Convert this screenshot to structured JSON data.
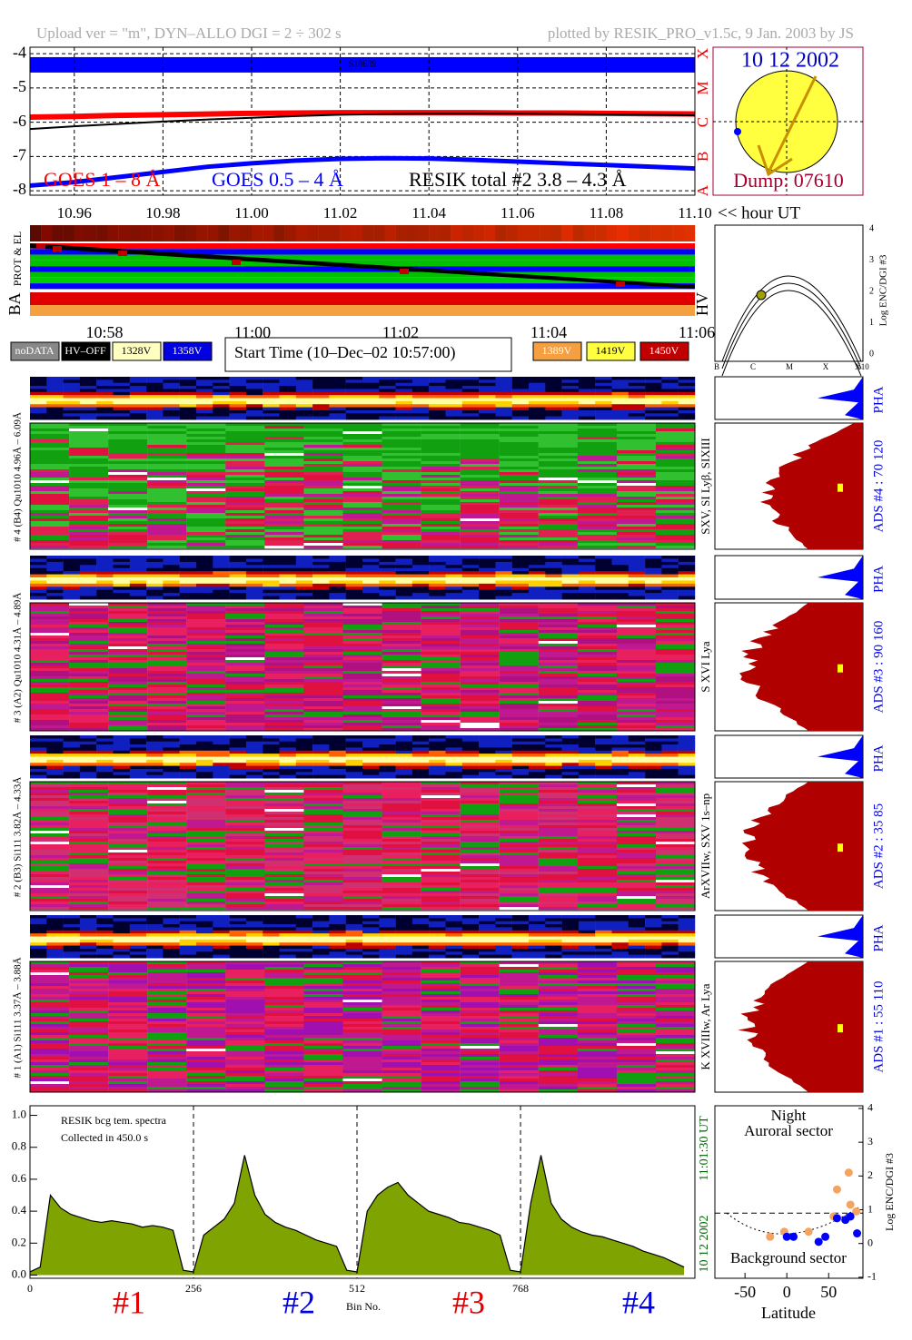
{
  "header": {
    "left": "Upload ver = \"m\", DYN–ALLO DGI =   2 ÷ 302 s",
    "right": "plotted by RESIK_PRO_v1.5c, 9 Jan. 2003 by JS"
  },
  "chart_data": [
    {
      "type": "line",
      "xlim": [
        10.95,
        11.1
      ],
      "xticks": [
        10.96,
        10.98,
        {
          "value": 11,
          "label": "11.00"
        },
        11.02,
        11.04,
        11.06,
        11.08,
        {
          "value": 11.1,
          "label": "11.10"
        }
      ],
      "xlabel": "<< hour UT",
      "ylim": [
        -8.13,
        -3.81
      ],
      "yticks": [
        -4,
        -5,
        -6,
        -7,
        -8
      ],
      "grid": true,
      "class_ticks": [
        {
          "value": -8,
          "label": "A"
        },
        {
          "value": -7,
          "label": "B"
        },
        {
          "value": -6,
          "label": "C"
        },
        {
          "value": -5,
          "label": "M"
        },
        {
          "value": -4,
          "label": "X"
        }
      ],
      "band": [
        -4.55,
        -4.1
      ],
      "annotation": "S18689",
      "x": [
        10.95,
        10.96,
        10.97,
        10.98,
        10.99,
        11.0,
        11.01,
        11.02,
        11.03,
        11.04,
        11.05,
        11.06,
        11.07,
        11.08,
        11.09,
        11.1
      ],
      "series": [
        {
          "name": "GOES 1 – 8 Å",
          "color": "#ff0000",
          "values": [
            -5.85,
            -5.83,
            -5.8,
            -5.78,
            -5.76,
            -5.74,
            -5.73,
            -5.72,
            -5.72,
            -5.72,
            -5.72,
            -5.73,
            -5.73,
            -5.74,
            -5.75,
            -5.76
          ]
        },
        {
          "name": "GOES 0.5 – 4 Å",
          "color": "#0000ff",
          "values": [
            -7.85,
            -7.75,
            -7.6,
            -7.45,
            -7.3,
            -7.2,
            -7.12,
            -7.07,
            -7.05,
            -7.06,
            -7.1,
            -7.15,
            -7.2,
            -7.25,
            -7.3,
            -7.35
          ]
        },
        {
          "name": "RESIK total #2  3.8 – 4.3 Å",
          "color": "#000000",
          "values": [
            -6.2,
            -6.12,
            -6.05,
            -5.98,
            -5.92,
            -5.87,
            -5.82,
            -5.78,
            -5.76,
            -5.75,
            -5.75,
            -5.75,
            -5.76,
            -5.77,
            -5.78,
            -5.8
          ]
        }
      ]
    },
    {
      "type": "area",
      "xlim": [
        0,
        1041
      ],
      "xticks": [
        0,
        256,
        512,
        768
      ],
      "xlabel": "Bin No.",
      "ylim": [
        -0.02,
        1.06
      ],
      "yticks": [
        {
          "value": 0,
          "label": "0.0"
        },
        {
          "value": 0.2,
          "label": "0.2"
        },
        {
          "value": 0.4,
          "label": "0.4"
        },
        {
          "value": 0.6,
          "label": "0.6"
        },
        {
          "value": 0.8,
          "label": "0.8"
        },
        {
          "value": 1,
          "label": "1.0"
        }
      ],
      "annotations": [
        "RESIK bcg tem. spectra",
        "Collected in   450.0 s"
      ],
      "date": "10 12 2002",
      "time": "11:01:30 UT",
      "sections": [
        {
          "label": "#1",
          "color": "#e00000"
        },
        {
          "label": "#2",
          "color": "#0000e0"
        },
        {
          "label": "#3",
          "color": "#e00000"
        },
        {
          "label": "#4",
          "color": "#0000e0"
        }
      ],
      "color": "#7fa300",
      "x": [
        0,
        16,
        32,
        48,
        64,
        80,
        96,
        112,
        128,
        144,
        160,
        176,
        192,
        208,
        224,
        240,
        256,
        272,
        288,
        304,
        320,
        336,
        352,
        368,
        384,
        400,
        416,
        432,
        448,
        464,
        480,
        496,
        512,
        528,
        544,
        560,
        576,
        592,
        608,
        624,
        640,
        656,
        672,
        688,
        704,
        720,
        736,
        752,
        768,
        784,
        800,
        816,
        832,
        848,
        864,
        880,
        896,
        912,
        928,
        944,
        960,
        976,
        992,
        1008,
        1024
      ],
      "values": [
        0.02,
        0.05,
        0.5,
        0.42,
        0.38,
        0.36,
        0.34,
        0.33,
        0.34,
        0.33,
        0.32,
        0.3,
        0.31,
        0.3,
        0.28,
        0.03,
        0.02,
        0.25,
        0.3,
        0.35,
        0.45,
        0.75,
        0.5,
        0.38,
        0.33,
        0.3,
        0.28,
        0.25,
        0.22,
        0.2,
        0.18,
        0.03,
        0.02,
        0.4,
        0.5,
        0.55,
        0.58,
        0.5,
        0.45,
        0.4,
        0.38,
        0.36,
        0.33,
        0.32,
        0.3,
        0.28,
        0.25,
        0.03,
        0.02,
        0.45,
        0.75,
        0.45,
        0.35,
        0.3,
        0.27,
        0.25,
        0.24,
        0.22,
        0.2,
        0.18,
        0.15,
        0.13,
        0.11,
        0.08,
        0.05
      ]
    },
    {
      "type": "scatter",
      "xlim": [
        -86,
        91
      ],
      "xticks": [
        -50,
        0,
        50
      ],
      "xlabel": "Latitude",
      "ylim": [
        -1.03,
        4.08
      ],
      "yticks": [
        -1,
        0,
        1,
        2,
        3,
        4
      ],
      "ylabel": "Log ENC/DGI #3",
      "annotations": [
        "Night",
        "Auroral sector",
        "Background sector"
      ],
      "threshold": 0.9,
      "series": [
        {
          "color": "#f4a460",
          "x": [
            -20,
            -3,
            26,
            56,
            60,
            74,
            76,
            83
          ],
          "values": [
            0.2,
            0.35,
            0.35,
            0.8,
            1.6,
            2.1,
            1.15,
            0.95
          ]
        },
        {
          "color": "#0000ff",
          "x": [
            0,
            8,
            38,
            46,
            60,
            70,
            84,
            76
          ],
          "values": [
            0.2,
            0.2,
            0.05,
            0.2,
            0.75,
            0.7,
            0.3,
            0.8
          ]
        }
      ]
    }
  ],
  "solar_disk": {
    "date": "10 12 2002",
    "dump": "Dump: 07610"
  },
  "timeline": {
    "labels": [
      "PROT & EL",
      "BA",
      "HV"
    ],
    "ticks": [
      "10:58",
      "11:00",
      "11:02",
      "11:04",
      "11:06"
    ]
  },
  "flux_map": {
    "yticks": [
      "0",
      "1",
      "2",
      "3",
      "4"
    ],
    "xticks": [
      "B",
      "C",
      "M",
      "X",
      "X10"
    ],
    "ylabel": "Log ENC/DGI #3"
  },
  "buttons_left": [
    "noDATA",
    "HV–OFF",
    "1328V",
    "1358V"
  ],
  "start_time": "Start Time (10–Dec–02 10:57:00)",
  "buttons_right": [
    "1389V",
    "1419V",
    "1450V"
  ],
  "spectrometers": [
    {
      "label": "# 4 (B4) Qu1010 4.96Å – 6.09Å",
      "lines": "SXV, SI Lyβ, SIXIII",
      "pha": "PHA",
      "ads": "ADS #4 :   70 120"
    },
    {
      "label": "# 3 (A2) Qu1010 4.31Å – 4.89Å",
      "lines": "S XVI Lya",
      "pha": "PHA",
      "ads": "ADS #3 :   90 160"
    },
    {
      "label": "# 2 (B3) Si111 3.82Å – 4.33Å",
      "lines": "ArXVIIw, SXV 1s–np",
      "pha": "PHA",
      "ads": "ADS #2 :   35  85"
    },
    {
      "label": "# 1 (A1) Si111 3.37Å – 3.88Å",
      "lines": "K XVIIIw, Ar Lya",
      "pha": "PHA",
      "ads": "ADS #1 :   55 110"
    }
  ]
}
